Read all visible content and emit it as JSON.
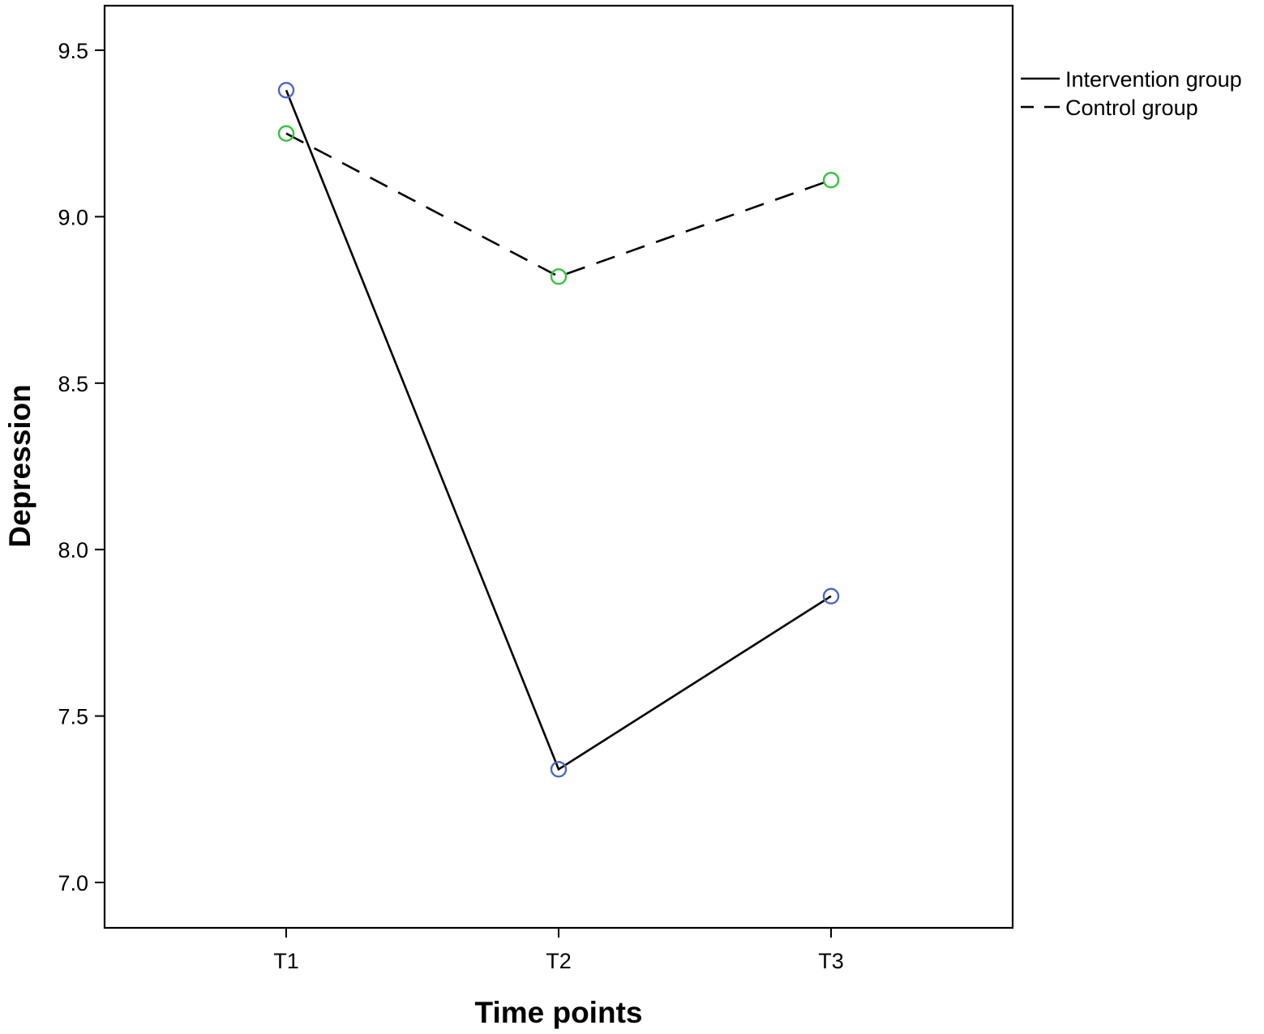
{
  "chart_data": {
    "type": "line",
    "title": "",
    "xlabel": "Time points",
    "ylabel": "Depression",
    "categories": [
      "T1",
      "T2",
      "T3"
    ],
    "ylim": [
      6.9,
      9.63
    ],
    "yticks": [
      7.0,
      7.5,
      8.0,
      8.5,
      9.0,
      9.5
    ],
    "ytick_labels": [
      "7.0",
      "7.5",
      "8.0",
      "8.5",
      "9.0",
      "9.5"
    ],
    "grid": false,
    "legend_position": "right",
    "series": [
      {
        "name": "Intervention group",
        "values": [
          9.38,
          7.34,
          7.86
        ],
        "line_style": "solid",
        "line_color": "#000000",
        "marker": "open-circle",
        "marker_color": "#4a66c4"
      },
      {
        "name": "Control group",
        "values": [
          9.25,
          8.82,
          9.11
        ],
        "line_style": "dashed",
        "line_color": "#000000",
        "marker": "open-circle",
        "marker_color": "#36c23e"
      }
    ]
  }
}
